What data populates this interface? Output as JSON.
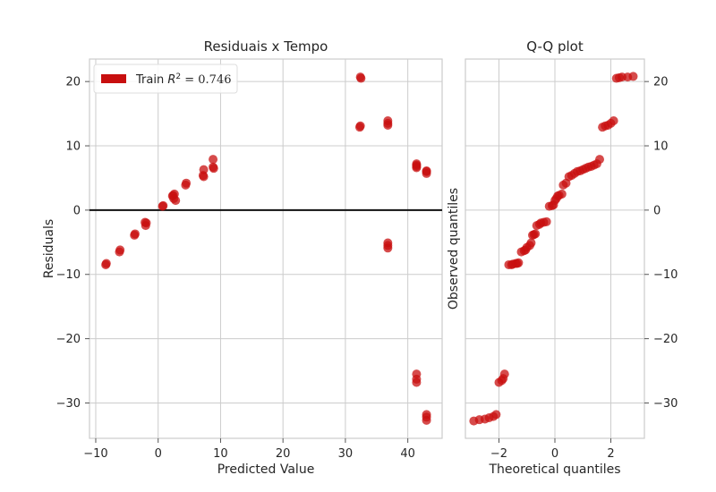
{
  "chart_data": [
    {
      "type": "scatter",
      "title": "Residuais x Tempo",
      "xlabel": "Predicted Value",
      "ylabel": "Residuals",
      "xlim": [
        -11,
        45.5
      ],
      "ylim": [
        -35.5,
        23.5
      ],
      "xticks": [
        -10,
        0,
        10,
        20,
        30,
        40
      ],
      "yticks": [
        -30,
        -20,
        -10,
        0,
        10,
        20
      ],
      "xtick_labels": [
        "−10",
        "0",
        "10",
        "20",
        "30",
        "40"
      ],
      "ytick_labels": [
        "−30",
        "−20",
        "−10",
        "0",
        "10",
        "20"
      ],
      "grid": true,
      "legend": {
        "placement": "top-left",
        "label": "Train",
        "stat_label": "R",
        "stat_sup": "2",
        "stat_value": " = 0.746",
        "color": "#c80f0f"
      },
      "zero_line": 0,
      "series": [
        {
          "name": "Train",
          "color": "#c80f0f",
          "x": [
            -8.4,
            -8.3,
            -6.2,
            -6.1,
            -3.8,
            -3.7,
            -2.0,
            -1.9,
            -2.1,
            0.8,
            0.7,
            2.3,
            2.4,
            2.6,
            2.8,
            2.5,
            4.5,
            4.4,
            7.3,
            7.2,
            7.3,
            8.8,
            8.9,
            8.8,
            32.4,
            32.5,
            32.4,
            32.3,
            36.8,
            36.8,
            36.8,
            36.8,
            36.8,
            36.8,
            41.4,
            41.4,
            41.4,
            41.4,
            41.4,
            41.4,
            41.4,
            43.0,
            43.0,
            43.0,
            43.0,
            43.0,
            43.0
          ],
          "y": [
            -8.5,
            -8.3,
            -6.5,
            -6.2,
            -3.9,
            -3.7,
            -2.4,
            -2.0,
            -1.9,
            0.7,
            0.6,
            2.2,
            2.3,
            2.5,
            1.5,
            1.8,
            4.2,
            3.9,
            6.3,
            5.4,
            5.2,
            7.9,
            6.5,
            6.7,
            20.7,
            20.5,
            13.1,
            12.9,
            13.9,
            13.5,
            -5.1,
            -5.5,
            -5.9,
            13.2,
            7.0,
            6.6,
            -25.5,
            -26.3,
            -26.8,
            7.2,
            6.8,
            6.1,
            5.7,
            -31.8,
            -32.2,
            -32.7,
            6.0
          ]
        }
      ]
    },
    {
      "type": "scatter",
      "title": "Q-Q plot",
      "xlabel": "Theoretical quantiles",
      "ylabel": "Observed quantiles",
      "xlim": [
        -3.2,
        3.2
      ],
      "ylim": [
        -35.5,
        23.5
      ],
      "xticks": [
        -2,
        0,
        2
      ],
      "yticks": [
        -30,
        -20,
        -10,
        0,
        10,
        20
      ],
      "xtick_labels": [
        "−2",
        "0",
        "2"
      ],
      "ytick_labels": [
        "−30",
        "−20",
        "−10",
        "0",
        "10",
        "20"
      ],
      "grid": true,
      "series": [
        {
          "color": "#c80f0f",
          "x": [
            -2.9,
            -2.7,
            -2.5,
            -2.35,
            -2.2,
            -2.1,
            -2.0,
            -1.9,
            -1.85,
            -1.8,
            -1.65,
            -1.55,
            -1.5,
            -1.4,
            -1.35,
            -1.3,
            -1.2,
            -1.1,
            -1.05,
            -1.0,
            -0.9,
            -0.85,
            -0.8,
            -0.75,
            -0.7,
            -0.65,
            -0.55,
            -0.5,
            -0.4,
            -0.3,
            -0.2,
            -0.1,
            -0.05,
            0.0,
            0.05,
            0.1,
            0.15,
            0.25,
            0.3,
            0.4,
            0.5,
            0.6,
            0.7,
            0.8,
            0.9,
            1.0,
            1.1,
            1.2,
            1.3,
            1.4,
            1.5,
            1.6,
            1.7,
            1.8,
            1.9,
            2.0,
            2.1,
            2.2,
            2.3,
            2.4,
            2.6,
            2.8
          ],
          "y": [
            -32.8,
            -32.6,
            -32.5,
            -32.3,
            -32.1,
            -31.8,
            -26.8,
            -26.5,
            -26.2,
            -25.5,
            -8.5,
            -8.5,
            -8.4,
            -8.3,
            -8.3,
            -8.2,
            -6.5,
            -6.3,
            -6.2,
            -5.8,
            -5.5,
            -5.1,
            -3.9,
            -3.8,
            -3.7,
            -2.4,
            -2.2,
            -2.0,
            -1.9,
            -1.8,
            0.6,
            0.7,
            0.8,
            1.5,
            1.8,
            2.2,
            2.3,
            2.5,
            3.9,
            4.2,
            5.2,
            5.4,
            5.7,
            6.0,
            6.1,
            6.3,
            6.5,
            6.7,
            6.8,
            7.0,
            7.2,
            7.9,
            12.9,
            13.1,
            13.2,
            13.5,
            13.9,
            20.5,
            20.6,
            20.7,
            20.7,
            20.8
          ]
        }
      ]
    }
  ]
}
